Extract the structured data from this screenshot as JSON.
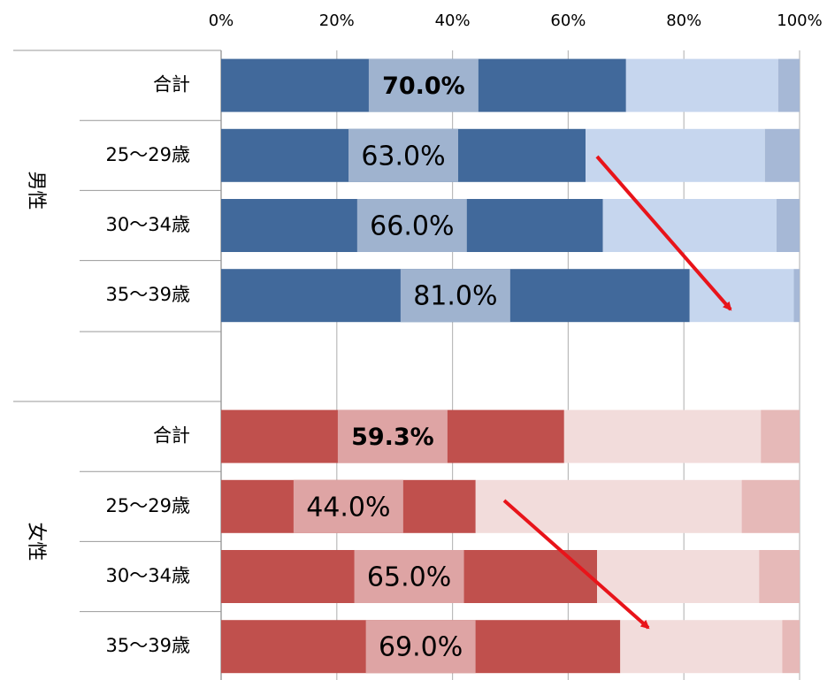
{
  "chart_data": [
    {
      "type": "bar",
      "group": "男性",
      "categories": [
        "合計",
        "25〜29歳",
        "30〜34歳",
        "35〜39歳"
      ],
      "series": [
        {
          "color": "#41699b",
          "values": [
            70.0,
            63.0,
            66.0,
            81.0
          ],
          "value_labels": [
            "70.0%",
            "63.0%",
            "66.0%",
            "81.0%"
          ],
          "label_box_color": "#9fb3cf"
        },
        {
          "color": "#c6d6ee",
          "values": [
            26.3,
            31.0,
            30.0,
            18.0
          ]
        },
        {
          "color": "#a6b8d6",
          "values": [
            3.7,
            6.0,
            4.0,
            1.0
          ]
        }
      ],
      "xlim": [
        0,
        100
      ],
      "xticks": [
        {
          "value": 0,
          "label": "0%"
        },
        {
          "value": 20,
          "label": "20%"
        },
        {
          "value": 40,
          "label": "40%"
        },
        {
          "value": 60,
          "label": "60%"
        },
        {
          "value": 80,
          "label": "80%"
        },
        {
          "value": 100,
          "label": "100%"
        }
      ],
      "grid": true
    },
    {
      "type": "bar",
      "group": "女性",
      "categories": [
        "合計",
        "25〜29歳",
        "30〜34歳",
        "35〜39歳"
      ],
      "series": [
        {
          "color": "#c0504d",
          "values": [
            59.3,
            44.0,
            65.0,
            69.0
          ],
          "value_labels": [
            "59.3%",
            "44.0%",
            "65.0%",
            "69.0%"
          ],
          "label_box_color": "#dea4a4"
        },
        {
          "color": "#f2dcdb",
          "values": [
            34.0,
            46.0,
            28.0,
            28.0
          ]
        },
        {
          "color": "#e6b9b8",
          "values": [
            6.7,
            10.0,
            7.0,
            3.0
          ]
        }
      ],
      "xlim": [
        0,
        100
      ],
      "grid": true
    }
  ]
}
